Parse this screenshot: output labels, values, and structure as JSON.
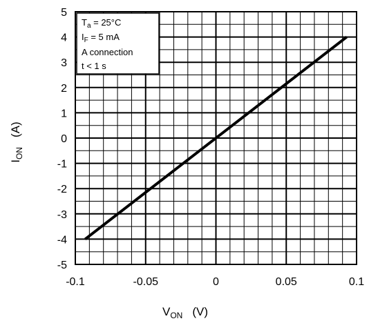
{
  "chart_data": {
    "type": "line",
    "title": "",
    "xlabel": {
      "main": "V",
      "sub": "ON",
      "unit": "(V)"
    },
    "ylabel": {
      "main": "I",
      "sub": "ON",
      "unit": "(A)"
    },
    "xlim": [
      -0.1,
      0.1
    ],
    "ylim": [
      -5,
      5
    ],
    "x_ticks": [
      "-0.1",
      "-0.05",
      "0",
      "0.05",
      "0.1"
    ],
    "y_ticks": [
      "5",
      "4",
      "3",
      "2",
      "1",
      "0",
      "-1",
      "-2",
      "-3",
      "-4",
      "-5"
    ],
    "grid": true,
    "series": [
      {
        "x": [
          -0.093,
          0.093
        ],
        "y": [
          -4.0,
          4.0
        ]
      }
    ],
    "conditions": [
      {
        "main": "T",
        "sub": "a",
        "rest": " = 25°C"
      },
      {
        "main": "I",
        "sub": "F",
        "rest": " = 5 mA"
      },
      {
        "main": "A connection",
        "sub": "",
        "rest": ""
      },
      {
        "main": "t < 1 s",
        "sub": "",
        "rest": ""
      }
    ]
  }
}
